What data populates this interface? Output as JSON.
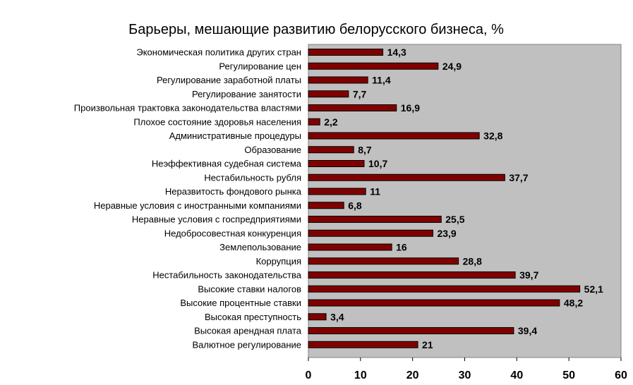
{
  "chart_data": {
    "type": "bar",
    "orientation": "horizontal",
    "title": "Барьеры, мешающие развитию белорусского бизнеса, %",
    "xlabel": "",
    "ylabel": "",
    "xlim": [
      0,
      60
    ],
    "xticks": [
      0,
      10,
      20,
      30,
      40,
      50,
      60
    ],
    "grid": false,
    "legend": "none",
    "categories": [
      "Экономическая политика других стран",
      "Регулирование цен",
      "Регулирование заработной платы",
      "Регулирование занятости",
      "Произвольная трактовка законодательства властями",
      "Плохое состояние здоровья населения",
      "Административные процедуры",
      "Образование",
      "Неэффективная судебная система",
      "Нестабильность рубля",
      "Неразвитость фондового рынка",
      "Неравные условия с иностранными компаниями",
      "Неравные условия с госпредприятиями",
      "Недобросовестная конкуренция",
      "Землепользование",
      "Коррупция",
      "Нестабильность законодательства",
      "Высокие ставки налогов",
      "Высокие процентные ставки",
      "Высокая преступность",
      "Высокая арендная плата",
      "Валютное регулирование"
    ],
    "values": [
      14.3,
      24.9,
      11.4,
      7.7,
      16.9,
      2.2,
      32.8,
      8.7,
      10.7,
      37.7,
      11,
      6.8,
      25.5,
      23.9,
      16,
      28.8,
      39.7,
      52.1,
      48.2,
      3.4,
      39.4,
      21
    ],
    "value_labels": [
      "14,3",
      "24,9",
      "11,4",
      "7,7",
      "16,9",
      "2,2",
      "32,8",
      "8,7",
      "10,7",
      "37,7",
      "11",
      "6,8",
      "25,5",
      "23,9",
      "16",
      "28,8",
      "39,7",
      "52,1",
      "48,2",
      "3,4",
      "39,4",
      "21"
    ],
    "colors": {
      "bar": "#800000",
      "plot_background": "#c0c0c0",
      "bar_edge": "#000000"
    }
  }
}
